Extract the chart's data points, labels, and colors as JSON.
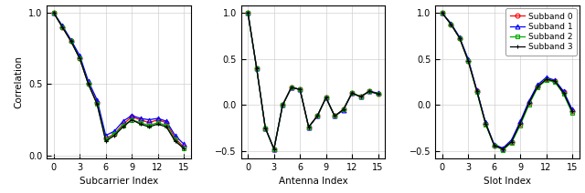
{
  "subband_colors": [
    "#FF0000",
    "#0000FF",
    "#00AA00",
    "#000000"
  ],
  "subband_markers": [
    "o",
    "^",
    "s",
    "+"
  ],
  "subband_labels": [
    "Subband 0",
    "Subband 1",
    "Subband 2",
    "Subband 3"
  ],
  "subcarrier_x": [
    0,
    1,
    2,
    3,
    4,
    5,
    6,
    7,
    8,
    9,
    10,
    11,
    12,
    13,
    14,
    15
  ],
  "subcarrier_data": [
    [
      1.0,
      0.9,
      0.8,
      0.68,
      0.5,
      0.37,
      0.12,
      0.15,
      0.22,
      0.27,
      0.25,
      0.23,
      0.25,
      0.23,
      0.12,
      0.06
    ],
    [
      1.0,
      0.91,
      0.81,
      0.7,
      0.52,
      0.39,
      0.14,
      0.17,
      0.24,
      0.28,
      0.26,
      0.25,
      0.26,
      0.24,
      0.14,
      0.08
    ],
    [
      1.0,
      0.9,
      0.8,
      0.68,
      0.5,
      0.36,
      0.11,
      0.15,
      0.21,
      0.25,
      0.23,
      0.21,
      0.23,
      0.21,
      0.11,
      0.05
    ],
    [
      1.0,
      0.9,
      0.8,
      0.68,
      0.5,
      0.36,
      0.1,
      0.14,
      0.2,
      0.25,
      0.22,
      0.2,
      0.22,
      0.2,
      0.1,
      0.05
    ]
  ],
  "antenna_x": [
    0,
    1,
    2,
    3,
    4,
    5,
    6,
    7,
    8,
    9,
    10,
    11,
    12,
    13,
    14,
    15
  ],
  "antenna_data": [
    [
      1.0,
      0.4,
      -0.25,
      -0.48,
      0.0,
      0.19,
      0.17,
      -0.24,
      -0.12,
      0.08,
      -0.12,
      -0.05,
      0.13,
      0.09,
      0.15,
      0.12
    ],
    [
      1.0,
      0.4,
      -0.25,
      -0.48,
      0.0,
      0.19,
      0.17,
      -0.24,
      -0.12,
      0.08,
      -0.12,
      -0.06,
      0.13,
      0.09,
      0.15,
      0.13
    ],
    [
      1.0,
      0.4,
      -0.25,
      -0.48,
      0.0,
      0.19,
      0.17,
      -0.24,
      -0.12,
      0.08,
      -0.12,
      -0.05,
      0.13,
      0.09,
      0.15,
      0.12
    ],
    [
      1.0,
      0.4,
      -0.25,
      -0.48,
      0.0,
      0.19,
      0.17,
      -0.24,
      -0.12,
      0.08,
      -0.12,
      -0.05,
      0.13,
      0.09,
      0.15,
      0.12
    ]
  ],
  "slot_x": [
    0,
    1,
    2,
    3,
    4,
    5,
    6,
    7,
    8,
    9,
    10,
    11,
    12,
    13,
    14,
    15
  ],
  "slot_data": [
    [
      1.0,
      0.88,
      0.73,
      0.48,
      0.15,
      -0.2,
      -0.44,
      -0.48,
      -0.4,
      -0.2,
      0.02,
      0.2,
      0.28,
      0.26,
      0.14,
      -0.07
    ],
    [
      1.0,
      0.89,
      0.74,
      0.5,
      0.16,
      -0.19,
      -0.43,
      -0.47,
      -0.38,
      -0.18,
      0.04,
      0.22,
      0.3,
      0.27,
      0.15,
      -0.05
    ],
    [
      1.0,
      0.88,
      0.73,
      0.48,
      0.14,
      -0.21,
      -0.44,
      -0.49,
      -0.41,
      -0.22,
      0.0,
      0.19,
      0.27,
      0.25,
      0.12,
      -0.09
    ],
    [
      1.0,
      0.88,
      0.73,
      0.48,
      0.15,
      -0.2,
      -0.44,
      -0.48,
      -0.4,
      -0.2,
      0.02,
      0.2,
      0.28,
      0.26,
      0.13,
      -0.07
    ]
  ],
  "subcarrier_xlim": [
    -0.8,
    15.8
  ],
  "subcarrier_ylim": [
    -0.02,
    1.05
  ],
  "antenna_xlim": [
    -0.8,
    15.8
  ],
  "antenna_ylim": [
    -0.58,
    1.08
  ],
  "slot_xlim": [
    -0.8,
    15.8
  ],
  "slot_ylim": [
    -0.58,
    1.08
  ],
  "xticks": [
    0,
    3,
    6,
    9,
    12,
    15
  ],
  "subcarrier_yticks": [
    0.0,
    0.5,
    1.0
  ],
  "antenna_yticks": [
    -0.5,
    0.0,
    0.5,
    1.0
  ],
  "slot_yticks": [
    -0.5,
    0.0,
    0.5,
    1.0
  ],
  "xlabel1": "Subcarrier Index",
  "xlabel2": "Antenna Index",
  "xlabel3": "Slot Index",
  "ylabel": "Correlation",
  "marker_size": 3.5,
  "linewidth": 0.9,
  "grid_color": "#D0D0D0",
  "background_color": "#FFFFFF"
}
